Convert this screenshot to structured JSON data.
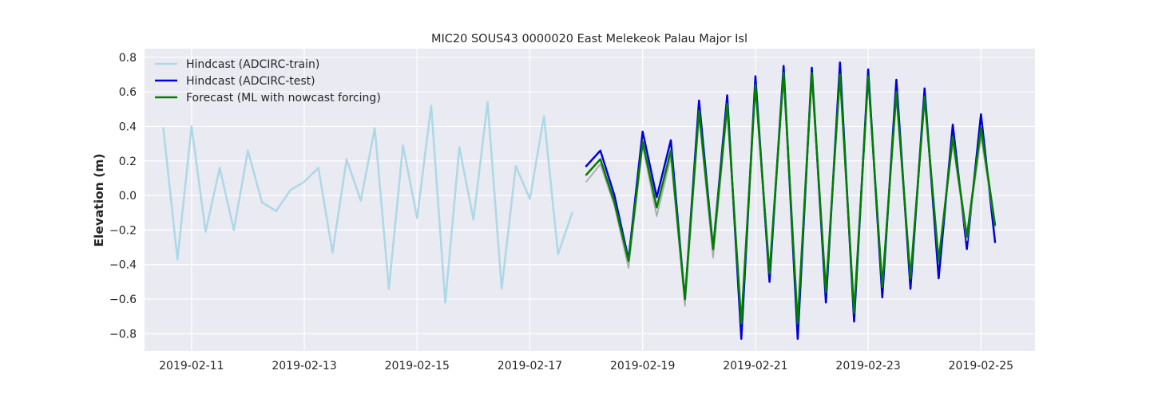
{
  "chart_data": {
    "type": "line",
    "title": "MIC20 SOUS43 0000020 East Melekeok Palau Major Isl",
    "xlabel": "",
    "ylabel": "Elevation (m)",
    "x_axis_type": "date",
    "xlim": [
      "2019-02-10T04:00",
      "2019-02-25T23:00"
    ],
    "ylim": [
      -0.9,
      0.85
    ],
    "x_ticks": [
      "2019-02-11",
      "2019-02-13",
      "2019-02-15",
      "2019-02-17",
      "2019-02-19",
      "2019-02-21",
      "2019-02-23",
      "2019-02-25"
    ],
    "y_ticks": [
      -0.8,
      -0.6,
      -0.4,
      -0.2,
      0.0,
      0.2,
      0.4,
      0.6,
      0.8
    ],
    "y_tick_labels": [
      "−0.8",
      "−0.6",
      "−0.4",
      "−0.2",
      "0.0",
      "0.2",
      "0.4",
      "0.6",
      "0.8"
    ],
    "grid": true,
    "legend_position": "top-left",
    "series": [
      {
        "name": "Hindcast (ADCIRC-train)",
        "color": "#add8e6",
        "style": "line",
        "x": [
          "2019-02-10T12:00",
          "2019-02-10T18:00",
          "2019-02-11T00:00",
          "2019-02-11T06:00",
          "2019-02-11T12:00",
          "2019-02-11T18:00",
          "2019-02-12T00:00",
          "2019-02-12T06:00",
          "2019-02-12T12:00",
          "2019-02-12T18:00",
          "2019-02-13T00:00",
          "2019-02-13T06:00",
          "2019-02-13T12:00",
          "2019-02-13T18:00",
          "2019-02-14T00:00",
          "2019-02-14T06:00",
          "2019-02-14T12:00",
          "2019-02-14T18:00",
          "2019-02-15T00:00",
          "2019-02-15T06:00",
          "2019-02-15T12:00",
          "2019-02-15T18:00",
          "2019-02-16T00:00",
          "2019-02-16T06:00",
          "2019-02-16T12:00",
          "2019-02-16T18:00",
          "2019-02-17T00:00",
          "2019-02-17T06:00",
          "2019-02-17T12:00",
          "2019-02-17T18:00"
        ],
        "values": [
          0.39,
          -0.37,
          0.4,
          -0.21,
          0.16,
          -0.2,
          0.26,
          -0.04,
          -0.09,
          0.03,
          0.08,
          0.16,
          -0.33,
          0.21,
          -0.03,
          0.39,
          -0.54,
          0.29,
          -0.13,
          0.52,
          -0.62,
          0.28,
          -0.14,
          0.54,
          -0.54,
          0.17,
          -0.02,
          0.46,
          -0.34,
          -0.1
        ]
      },
      {
        "name": "Hindcast (ADCIRC-test)",
        "color": "#0000dd",
        "style": "line",
        "x": [
          "2019-02-18T00:00",
          "2019-02-18T06:00",
          "2019-02-18T12:00",
          "2019-02-18T18:00",
          "2019-02-19T00:00",
          "2019-02-19T06:00",
          "2019-02-19T12:00",
          "2019-02-19T18:00",
          "2019-02-20T00:00",
          "2019-02-20T06:00",
          "2019-02-20T12:00",
          "2019-02-20T18:00",
          "2019-02-21T00:00",
          "2019-02-21T06:00",
          "2019-02-21T12:00",
          "2019-02-21T18:00",
          "2019-02-22T00:00",
          "2019-02-22T06:00",
          "2019-02-22T12:00",
          "2019-02-22T18:00",
          "2019-02-23T00:00",
          "2019-02-23T06:00",
          "2019-02-23T12:00",
          "2019-02-23T18:00",
          "2019-02-24T00:00",
          "2019-02-24T06:00",
          "2019-02-24T12:00",
          "2019-02-24T18:00",
          "2019-02-25T00:00",
          "2019-02-25T06:00"
        ],
        "values": [
          0.17,
          0.26,
          0.0,
          -0.37,
          0.37,
          -0.01,
          0.32,
          -0.61,
          0.55,
          -0.31,
          0.58,
          -0.83,
          0.69,
          -0.5,
          0.75,
          -0.83,
          0.74,
          -0.62,
          0.77,
          -0.73,
          0.73,
          -0.59,
          0.67,
          -0.54,
          0.62,
          -0.48,
          0.41,
          -0.31,
          0.47,
          -0.27
        ]
      },
      {
        "name": "",
        "color": "#aaaaaa",
        "style": "line",
        "x": [
          "2019-02-18T00:00",
          "2019-02-18T06:00",
          "2019-02-18T12:00",
          "2019-02-18T18:00",
          "2019-02-19T00:00",
          "2019-02-19T06:00",
          "2019-02-19T12:00",
          "2019-02-19T18:00",
          "2019-02-20T00:00",
          "2019-02-20T06:00",
          "2019-02-20T12:00",
          "2019-02-20T18:00",
          "2019-02-21T00:00",
          "2019-02-21T06:00",
          "2019-02-21T12:00",
          "2019-02-21T18:00",
          "2019-02-22T00:00",
          "2019-02-22T06:00",
          "2019-02-22T12:00",
          "2019-02-22T18:00",
          "2019-02-23T00:00",
          "2019-02-23T06:00",
          "2019-02-23T12:00",
          "2019-02-23T18:00",
          "2019-02-24T00:00",
          "2019-02-24T06:00",
          "2019-02-24T12:00",
          "2019-02-24T18:00",
          "2019-02-25T00:00",
          "2019-02-25T06:00"
        ],
        "values": [
          0.08,
          0.18,
          -0.06,
          -0.42,
          0.29,
          -0.12,
          0.22,
          -0.64,
          0.46,
          -0.36,
          0.49,
          -0.72,
          0.62,
          -0.45,
          0.68,
          -0.72,
          0.68,
          -0.53,
          0.69,
          -0.64,
          0.66,
          -0.5,
          0.56,
          -0.45,
          0.54,
          -0.36,
          0.3,
          -0.26,
          0.34,
          -0.18
        ]
      },
      {
        "name": "Forecast (ML with nowcast forcing)",
        "color": "#008000",
        "style": "line",
        "x": [
          "2019-02-18T00:00",
          "2019-02-18T06:00",
          "2019-02-18T12:00",
          "2019-02-18T18:00",
          "2019-02-19T00:00",
          "2019-02-19T06:00",
          "2019-02-19T12:00",
          "2019-02-19T18:00",
          "2019-02-20T00:00",
          "2019-02-20T06:00",
          "2019-02-20T12:00",
          "2019-02-20T18:00",
          "2019-02-21T00:00",
          "2019-02-21T06:00",
          "2019-02-21T12:00",
          "2019-02-21T18:00",
          "2019-02-22T00:00",
          "2019-02-22T06:00",
          "2019-02-22T12:00",
          "2019-02-22T18:00",
          "2019-02-23T00:00",
          "2019-02-23T06:00",
          "2019-02-23T12:00",
          "2019-02-23T18:00",
          "2019-02-24T00:00",
          "2019-02-24T06:00",
          "2019-02-24T12:00",
          "2019-02-24T18:00",
          "2019-02-25T00:00",
          "2019-02-25T06:00"
        ],
        "values": [
          0.12,
          0.21,
          -0.04,
          -0.38,
          0.31,
          -0.07,
          0.26,
          -0.6,
          0.49,
          -0.31,
          0.53,
          -0.74,
          0.64,
          -0.45,
          0.71,
          -0.74,
          0.71,
          -0.56,
          0.7,
          -0.68,
          0.69,
          -0.53,
          0.6,
          -0.48,
          0.57,
          -0.38,
          0.34,
          -0.24,
          0.39,
          -0.17
        ]
      }
    ]
  }
}
